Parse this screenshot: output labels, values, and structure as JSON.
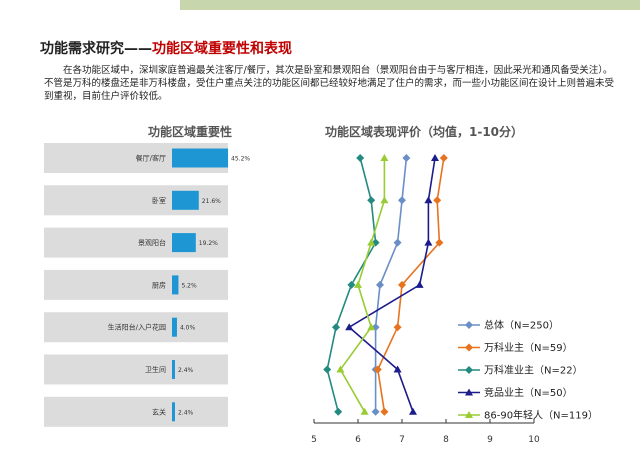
{
  "header": {
    "title_main": "功能需求研究——",
    "title_highlight": "功能区域重要性和表现"
  },
  "intro_text": "在各功能区域中，深圳家庭普遍最关注客厅/餐厅，其次是卧室和景观阳台（景观阳台由于与客厅相连，因此采光和通风备受关注）。不管是万科的楼盘还是非万科楼盘，受住户重点关注的功能区间都已经较好地满足了住户的需求，而一些小功能区间在设计上则普遍未受到重视，目前住户评价较低。",
  "colors": {
    "bar": "#1e96d4",
    "bar_bg": "#dcdcdc",
    "top_band": "#c8d6ae",
    "highlight": "#c00000"
  },
  "chart_data": [
    {
      "type": "bar",
      "orientation": "horizontal",
      "title": "功能区域重要性",
      "categories": [
        "餐厅/客厅",
        "卧室",
        "景观阳台",
        "厨房",
        "生活阳台/入户花园",
        "卫生间",
        "玄关"
      ],
      "values": [
        45.2,
        21.6,
        19.2,
        5.2,
        4.0,
        2.4,
        2.4
      ],
      "value_labels": [
        "45.2%",
        "21.6%",
        "19.2%",
        "5.2%",
        "4.0%",
        "2.4%",
        "2.4%"
      ],
      "xlim": [
        0,
        70
      ]
    },
    {
      "type": "line",
      "orientation": "horizontal",
      "title": "功能区域表现评价（均值，1-10分）",
      "categories": [
        "餐厅/客厅",
        "卧室",
        "景观阳台",
        "厨房",
        "生活阳台/入户花园",
        "卫生间",
        "玄关"
      ],
      "xlim": [
        5,
        10
      ],
      "xticks": [
        "5",
        "6",
        "7",
        "8",
        "9",
        "10"
      ],
      "series": [
        {
          "name": "总体（N=250）",
          "color": "#6a8fc7",
          "marker": "diamond",
          "values": [
            7.1,
            7.0,
            6.9,
            6.5,
            6.4,
            6.4,
            6.4
          ]
        },
        {
          "name": "万科业主（N=59）",
          "color": "#e8731e",
          "marker": "diamond",
          "values": [
            7.95,
            7.8,
            7.85,
            7.0,
            6.9,
            6.45,
            6.6
          ]
        },
        {
          "name": "万科准业主（N=22）",
          "color": "#238a80",
          "marker": "diamond",
          "values": [
            6.05,
            6.3,
            6.4,
            5.85,
            5.5,
            5.3,
            5.55
          ]
        },
        {
          "name": "竞品业主（N=50）",
          "color": "#1c1c8c",
          "marker": "triangle",
          "values": [
            7.75,
            7.6,
            7.6,
            7.4,
            5.8,
            6.9,
            7.25
          ]
        },
        {
          "name": "86-90年轻人（N=119）",
          "color": "#99cc33",
          "marker": "triangle",
          "values": [
            6.6,
            6.6,
            6.3,
            6.0,
            6.3,
            5.6,
            6.15
          ]
        }
      ]
    }
  ]
}
